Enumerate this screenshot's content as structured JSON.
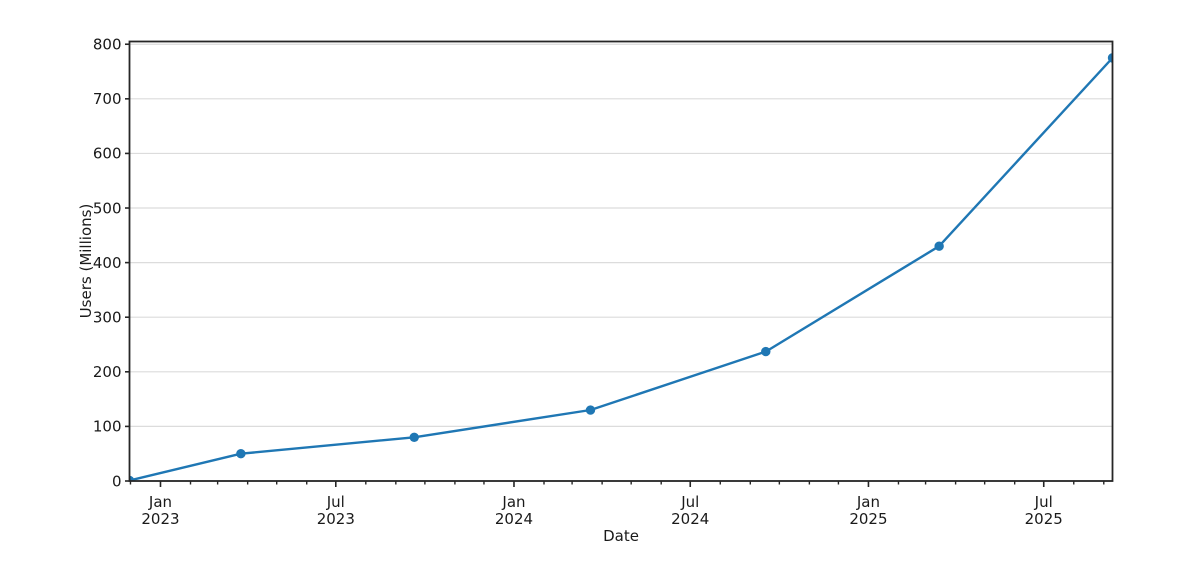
{
  "figure": {
    "background": "#ffffff"
  },
  "chart_data": {
    "type": "line",
    "title": "",
    "xlabel": "Date",
    "ylabel": "Users (Millions)",
    "grid": {
      "axis": "y",
      "color": "#dcdcdc"
    },
    "styles": {
      "spine_color": "#262626",
      "tick_color": "#262626",
      "text_color": "#1a1a1a"
    },
    "x_axis": {
      "min": "2022-11-30",
      "max": "2025-09-10",
      "minor_tick_unit": "month",
      "major_ticks": [
        {
          "date": "2023-01-01",
          "line1": "Jan",
          "line2": "2023"
        },
        {
          "date": "2023-07-01",
          "line1": "Jul",
          "line2": "2023"
        },
        {
          "date": "2024-01-01",
          "line1": "Jan",
          "line2": "2024"
        },
        {
          "date": "2024-07-01",
          "line1": "Jul",
          "line2": "2024"
        },
        {
          "date": "2025-01-01",
          "line1": "Jan",
          "line2": "2025"
        },
        {
          "date": "2025-07-01",
          "line1": "Jul",
          "line2": "2025"
        }
      ]
    },
    "y_axis": {
      "min": 0,
      "max": 805,
      "ticks": [
        0,
        100,
        200,
        300,
        400,
        500,
        600,
        700,
        800
      ],
      "tick_labels": [
        "0",
        "100",
        "200",
        "300",
        "400",
        "500",
        "600",
        "700",
        "800"
      ]
    },
    "series": [
      {
        "name": "Users",
        "color": "#1f77b4",
        "marker": "circle",
        "points": [
          {
            "date": "2022-11-30",
            "value": 1
          },
          {
            "date": "2023-03-25",
            "value": 50
          },
          {
            "date": "2023-09-20",
            "value": 80
          },
          {
            "date": "2024-03-20",
            "value": 130
          },
          {
            "date": "2024-09-17",
            "value": 237
          },
          {
            "date": "2025-03-15",
            "value": 430
          },
          {
            "date": "2025-09-10",
            "value": 775
          }
        ]
      }
    ]
  }
}
